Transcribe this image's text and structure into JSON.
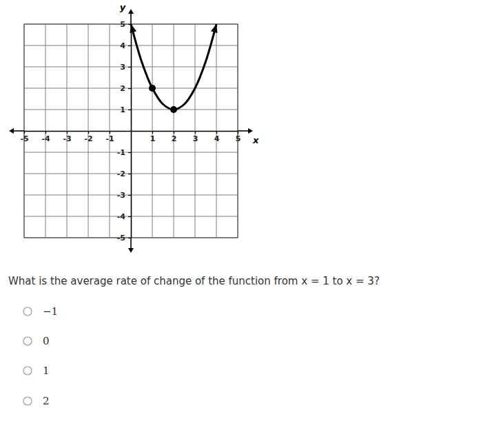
{
  "chart_data": {
    "type": "line",
    "x_label": "x",
    "y_label": "y",
    "xlim": [
      -5,
      5
    ],
    "ylim": [
      -5,
      5
    ],
    "xticks": [
      -5,
      -4,
      -3,
      -2,
      -1,
      1,
      2,
      3,
      4,
      5
    ],
    "yticks": [
      -5,
      -4,
      -3,
      -2,
      -1,
      1,
      2,
      3,
      4,
      5
    ],
    "grid": true,
    "series": [
      {
        "type": "line",
        "color": "#000000",
        "line_style": "solid",
        "x": [
          0,
          0.5,
          1,
          1.5,
          2,
          2.5,
          3,
          3.5,
          4
        ],
        "values": [
          5,
          3.25,
          2,
          1.25,
          1,
          1.25,
          2,
          3.25,
          5
        ]
      },
      {
        "type": "scatter",
        "color": "#000000",
        "marker": "circle",
        "x": [
          1,
          2
        ],
        "values": [
          2,
          1
        ]
      }
    ]
  },
  "question": "What is the average rate of change of the function from x = 1 to x = 3?",
  "choices": [
    "−1",
    "0",
    "1",
    "2"
  ]
}
